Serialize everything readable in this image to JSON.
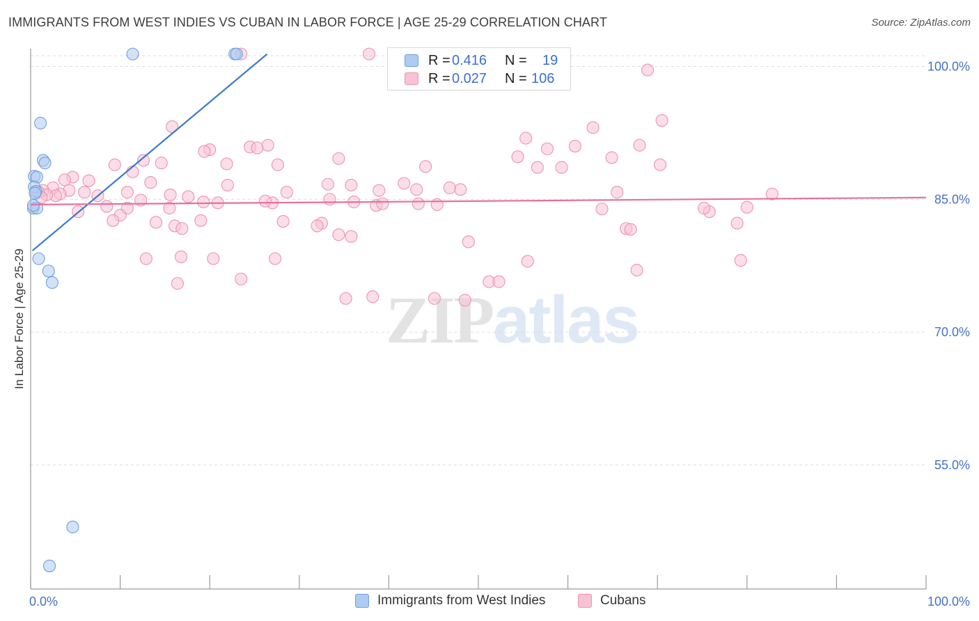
{
  "title": "IMMIGRANTS FROM WEST INDIES VS CUBAN IN LABOR FORCE | AGE 25-29 CORRELATION CHART",
  "source": "Source: ZipAtlas.com",
  "watermark": {
    "zip": "ZIP",
    "atlas": "atlas"
  },
  "legend_stats": {
    "series1": {
      "r_label": "R =",
      "r_value": "0.416",
      "n_label": "N =",
      "n_value": "19"
    },
    "series2": {
      "r_label": "R =",
      "r_value": "0.027",
      "n_label": "N =",
      "n_value": "106"
    }
  },
  "colors": {
    "blue_fill": "#aecbf0",
    "blue_stroke": "#6f9fdf",
    "blue_line": "#3a78d0",
    "pink_fill": "#f7c3d4",
    "pink_stroke": "#ec93b1",
    "pink_line": "#e8709a",
    "grid": "#dcdcdc",
    "axis": "#9a9a9a",
    "tick_text": "#4472c4"
  },
  "chart_data": {
    "type": "scatter",
    "title": "IMMIGRANTS FROM WEST INDIES VS CUBAN IN LABOR FORCE | AGE 25-29 CORRELATION CHART",
    "xlabel": "",
    "ylabel": "In Labor Force | Age 25-29",
    "xlim": [
      0,
      100
    ],
    "ylim": [
      41,
      102
    ],
    "y_ticks": [
      {
        "value": 100,
        "label": "100.0%"
      },
      {
        "value": 85,
        "label": "85.0%"
      },
      {
        "value": 70,
        "label": "70.0%"
      },
      {
        "value": 55,
        "label": "55.0%"
      }
    ],
    "x_tick_labels": [
      {
        "value": 0,
        "label": "0.0%"
      },
      {
        "value": 100,
        "label": "100.0%"
      }
    ],
    "x_minor_ticks": [
      0,
      10,
      20,
      30,
      40,
      50,
      60,
      70,
      80,
      90,
      100
    ],
    "series": [
      {
        "name": "Immigrants from West Indies",
        "color": "blue",
        "r": 0.416,
        "n": 19,
        "trend": {
          "x": [
            0.2,
            26.4
          ],
          "y": [
            79.2,
            101.4
          ]
        },
        "points": [
          {
            "x": 11.4,
            "y": 101.4
          },
          {
            "x": 22.8,
            "y": 101.4
          },
          {
            "x": 23.0,
            "y": 101.4
          },
          {
            "x": 1.1,
            "y": 93.6
          },
          {
            "x": 1.4,
            "y": 89.4
          },
          {
            "x": 1.6,
            "y": 89.1
          },
          {
            "x": 0.4,
            "y": 87.6
          },
          {
            "x": 0.7,
            "y": 87.5
          },
          {
            "x": 0.4,
            "y": 86.4
          },
          {
            "x": 0.6,
            "y": 85.9
          },
          {
            "x": 0.5,
            "y": 85.7
          },
          {
            "x": 0.3,
            "y": 84.0
          },
          {
            "x": 0.7,
            "y": 84.0
          },
          {
            "x": 0.9,
            "y": 78.3
          },
          {
            "x": 2.0,
            "y": 76.9
          },
          {
            "x": 2.4,
            "y": 75.6
          },
          {
            "x": 4.7,
            "y": 48.0
          },
          {
            "x": 2.1,
            "y": 43.6
          },
          {
            "x": 0.3,
            "y": 84.3
          }
        ]
      },
      {
        "name": "Cubans",
        "color": "pink",
        "r": 0.027,
        "n": 106,
        "trend": {
          "x": [
            0.0,
            100.0
          ],
          "y": [
            84.4,
            85.2
          ]
        },
        "points": [
          {
            "x": 23.5,
            "y": 101.4
          },
          {
            "x": 37.8,
            "y": 101.4
          },
          {
            "x": 49.4,
            "y": 101.4
          },
          {
            "x": 68.9,
            "y": 99.6
          },
          {
            "x": 70.5,
            "y": 93.9
          },
          {
            "x": 15.8,
            "y": 93.2
          },
          {
            "x": 62.8,
            "y": 93.1
          },
          {
            "x": 55.3,
            "y": 91.9
          },
          {
            "x": 68.0,
            "y": 91.1
          },
          {
            "x": 60.8,
            "y": 91.0
          },
          {
            "x": 57.7,
            "y": 90.7
          },
          {
            "x": 26.5,
            "y": 91.1
          },
          {
            "x": 20.0,
            "y": 90.6
          },
          {
            "x": 19.4,
            "y": 90.4
          },
          {
            "x": 24.5,
            "y": 90.9
          },
          {
            "x": 25.3,
            "y": 90.8
          },
          {
            "x": 54.4,
            "y": 89.8
          },
          {
            "x": 64.9,
            "y": 89.7
          },
          {
            "x": 34.4,
            "y": 89.6
          },
          {
            "x": 12.6,
            "y": 89.4
          },
          {
            "x": 14.6,
            "y": 89.1
          },
          {
            "x": 9.4,
            "y": 88.9
          },
          {
            "x": 21.9,
            "y": 89.0
          },
          {
            "x": 27.6,
            "y": 88.9
          },
          {
            "x": 56.6,
            "y": 88.6
          },
          {
            "x": 44.1,
            "y": 88.7
          },
          {
            "x": 70.3,
            "y": 88.9
          },
          {
            "x": 59.3,
            "y": 88.6
          },
          {
            "x": 11.4,
            "y": 88.1
          },
          {
            "x": 4.7,
            "y": 87.5
          },
          {
            "x": 3.8,
            "y": 87.2
          },
          {
            "x": 6.5,
            "y": 87.1
          },
          {
            "x": 13.4,
            "y": 86.9
          },
          {
            "x": 22.0,
            "y": 86.6
          },
          {
            "x": 33.2,
            "y": 86.7
          },
          {
            "x": 35.8,
            "y": 86.6
          },
          {
            "x": 48.0,
            "y": 86.1
          },
          {
            "x": 41.7,
            "y": 86.8
          },
          {
            "x": 46.8,
            "y": 86.3
          },
          {
            "x": 2.5,
            "y": 86.3
          },
          {
            "x": 1.4,
            "y": 86.0
          },
          {
            "x": 4.3,
            "y": 86.0
          },
          {
            "x": 28.6,
            "y": 85.8
          },
          {
            "x": 6.0,
            "y": 85.8
          },
          {
            "x": 10.8,
            "y": 85.8
          },
          {
            "x": 3.3,
            "y": 85.6
          },
          {
            "x": 2.8,
            "y": 85.4
          },
          {
            "x": 1.8,
            "y": 85.5
          },
          {
            "x": 0.9,
            "y": 85.8
          },
          {
            "x": 38.9,
            "y": 86.0
          },
          {
            "x": 43.1,
            "y": 86.1
          },
          {
            "x": 65.5,
            "y": 85.8
          },
          {
            "x": 82.8,
            "y": 85.6
          },
          {
            "x": 1.2,
            "y": 85.2
          },
          {
            "x": 7.5,
            "y": 85.4
          },
          {
            "x": 15.6,
            "y": 85.5
          },
          {
            "x": 17.6,
            "y": 85.3
          },
          {
            "x": 12.3,
            "y": 84.9
          },
          {
            "x": 19.3,
            "y": 84.7
          },
          {
            "x": 20.9,
            "y": 84.6
          },
          {
            "x": 27.0,
            "y": 84.6
          },
          {
            "x": 26.2,
            "y": 84.8
          },
          {
            "x": 33.4,
            "y": 85.0
          },
          {
            "x": 36.1,
            "y": 84.7
          },
          {
            "x": 38.6,
            "y": 84.3
          },
          {
            "x": 39.3,
            "y": 84.5
          },
          {
            "x": 43.3,
            "y": 84.5
          },
          {
            "x": 45.4,
            "y": 84.4
          },
          {
            "x": 8.5,
            "y": 84.2
          },
          {
            "x": 10.8,
            "y": 84.0
          },
          {
            "x": 15.5,
            "y": 84.0
          },
          {
            "x": 5.3,
            "y": 83.6
          },
          {
            "x": 10.0,
            "y": 83.2
          },
          {
            "x": 9.2,
            "y": 82.6
          },
          {
            "x": 14.0,
            "y": 82.4
          },
          {
            "x": 19.0,
            "y": 82.6
          },
          {
            "x": 28.2,
            "y": 82.5
          },
          {
            "x": 32.5,
            "y": 82.3
          },
          {
            "x": 32.0,
            "y": 82.0
          },
          {
            "x": 34.4,
            "y": 81.0
          },
          {
            "x": 35.8,
            "y": 80.8
          },
          {
            "x": 48.9,
            "y": 80.2
          },
          {
            "x": 66.5,
            "y": 81.7
          },
          {
            "x": 67.0,
            "y": 81.6
          },
          {
            "x": 16.1,
            "y": 82.0
          },
          {
            "x": 16.9,
            "y": 81.7
          },
          {
            "x": 63.8,
            "y": 83.9
          },
          {
            "x": 75.8,
            "y": 83.6
          },
          {
            "x": 75.2,
            "y": 84.0
          },
          {
            "x": 80.0,
            "y": 84.1
          },
          {
            "x": 78.9,
            "y": 82.3
          },
          {
            "x": 12.9,
            "y": 78.3
          },
          {
            "x": 16.8,
            "y": 78.5
          },
          {
            "x": 20.4,
            "y": 78.3
          },
          {
            "x": 27.3,
            "y": 78.3
          },
          {
            "x": 55.5,
            "y": 78.0
          },
          {
            "x": 67.7,
            "y": 77.0
          },
          {
            "x": 79.3,
            "y": 78.1
          },
          {
            "x": 16.4,
            "y": 75.5
          },
          {
            "x": 23.5,
            "y": 76.0
          },
          {
            "x": 51.2,
            "y": 75.7
          },
          {
            "x": 52.3,
            "y": 75.7
          },
          {
            "x": 35.2,
            "y": 73.8
          },
          {
            "x": 38.2,
            "y": 74.0
          },
          {
            "x": 45.1,
            "y": 73.8
          },
          {
            "x": 48.5,
            "y": 73.6
          }
        ]
      }
    ]
  },
  "bottom_legend": {
    "item1": "Immigrants from West Indies",
    "item2": "Cubans"
  }
}
